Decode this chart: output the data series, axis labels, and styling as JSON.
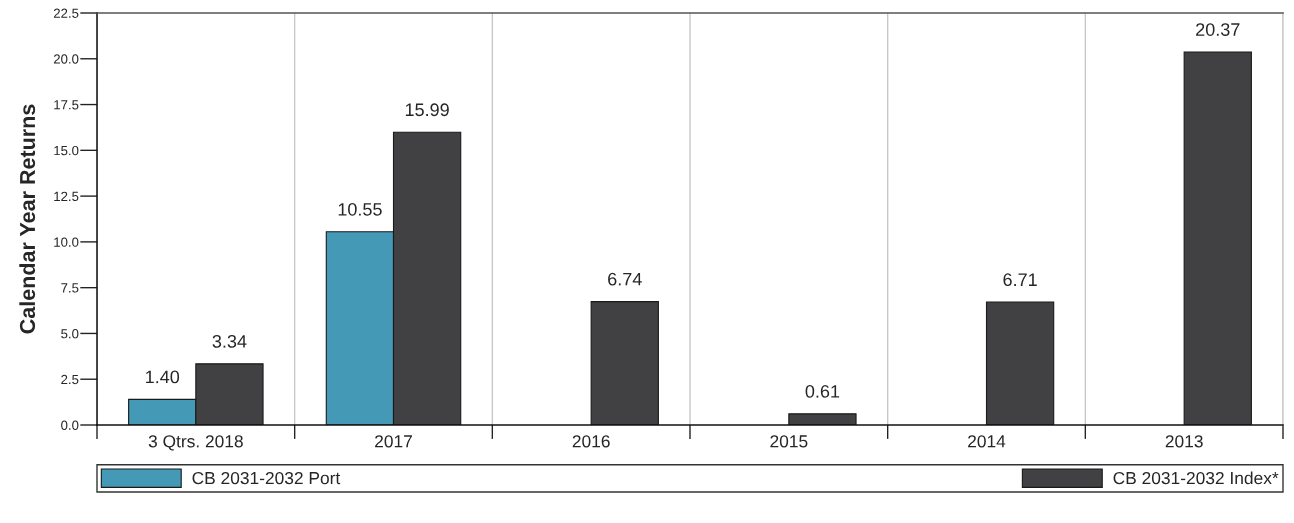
{
  "chart_data": {
    "type": "bar",
    "ylabel": "Calendar Year Returns",
    "categories": [
      "3 Qtrs. 2018",
      "2017",
      "2016",
      "2015",
      "2014",
      "2013"
    ],
    "series": [
      {
        "name": "CB 2031-2032 Port",
        "color": "#4499b6",
        "values": [
          1.4,
          10.55,
          null,
          null,
          null,
          null
        ],
        "value_labels": [
          "1.40",
          "10.55",
          null,
          null,
          null,
          null
        ]
      },
      {
        "name": "CB 2031-2032 Index*",
        "color": "#414143",
        "values": [
          3.34,
          15.99,
          6.74,
          0.61,
          6.71,
          20.37
        ],
        "value_labels": [
          "3.34",
          "15.99",
          "6.74",
          "0.61",
          "6.71",
          "20.37"
        ]
      }
    ],
    "ylim": [
      0,
      22.5
    ],
    "yticks": [
      {
        "value": 0,
        "label": "0.0"
      },
      2.5,
      {
        "value": 5,
        "label": "5.0"
      },
      7.5,
      {
        "value": 10,
        "label": "10.0"
      },
      12.5,
      {
        "value": 15,
        "label": "15.0"
      },
      17.5,
      {
        "value": 20,
        "label": "20.0"
      },
      22.5
    ],
    "grid": "x",
    "legend": "bottom"
  }
}
